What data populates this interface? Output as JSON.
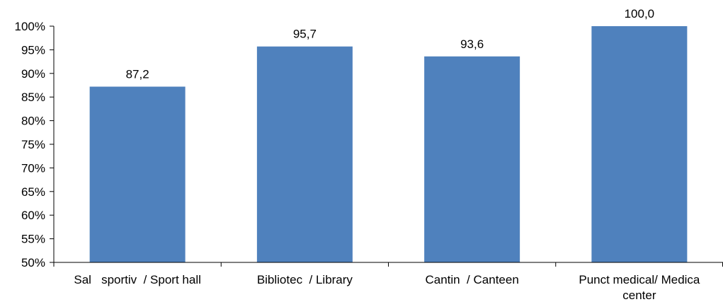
{
  "chart_data": {
    "type": "bar",
    "categories": [
      [
        "Sal   sportiv  / Sport hall"
      ],
      [
        "Bibliotec  / Library"
      ],
      [
        "Cantin  / Canteen"
      ],
      [
        "Punct medical/ Medica",
        "center"
      ]
    ],
    "values": [
      87.2,
      95.7,
      93.6,
      100.0
    ],
    "data_labels": [
      "87,2",
      "95,7",
      "93,6",
      "100,0"
    ],
    "ylim": [
      50,
      100
    ],
    "y_ticks": [
      50,
      55,
      60,
      65,
      70,
      75,
      80,
      85,
      90,
      95,
      100
    ],
    "y_tick_labels": [
      "50%",
      "55%",
      "60%",
      "65%",
      "70%",
      "75%",
      "80%",
      "85%",
      "90%",
      "95%",
      "100%"
    ],
    "grid": false,
    "legend": "none",
    "title": "",
    "xlabel": "",
    "ylabel": "",
    "bar_color": "#4f81bd"
  }
}
